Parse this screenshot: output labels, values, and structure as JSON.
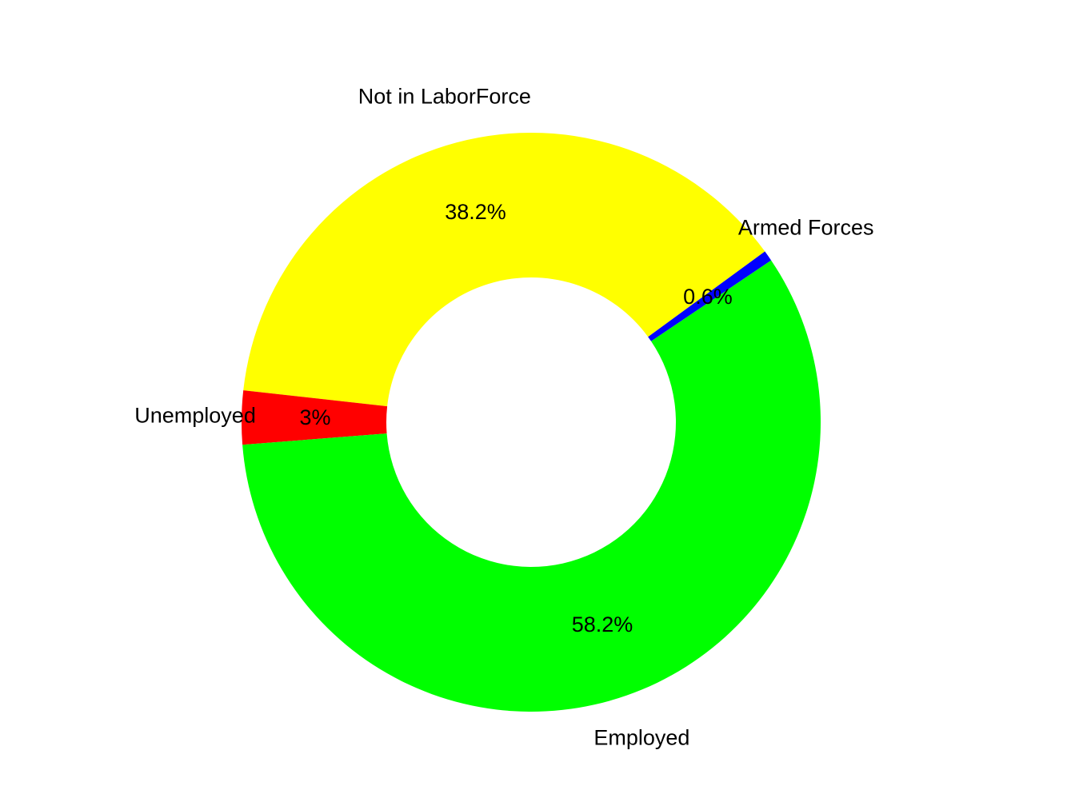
{
  "chart_data": {
    "type": "pie",
    "variant": "donut",
    "title": "",
    "start_angle_deg": 34,
    "direction": "counterclockwise",
    "slices": [
      {
        "label": "Armed Forces",
        "value": 0.6,
        "pct_label": "0.6%",
        "color": "#0000FF"
      },
      {
        "label": "Not in LaborForce",
        "value": 38.2,
        "pct_label": "38.2%",
        "color": "#FFFF00"
      },
      {
        "label": "Unemployed",
        "value": 3.0,
        "pct_label": "3%",
        "color": "#FF0000"
      },
      {
        "label": "Employed",
        "value": 58.2,
        "pct_label": "58.2%",
        "color": "#00FF00"
      }
    ],
    "legend": "none"
  }
}
